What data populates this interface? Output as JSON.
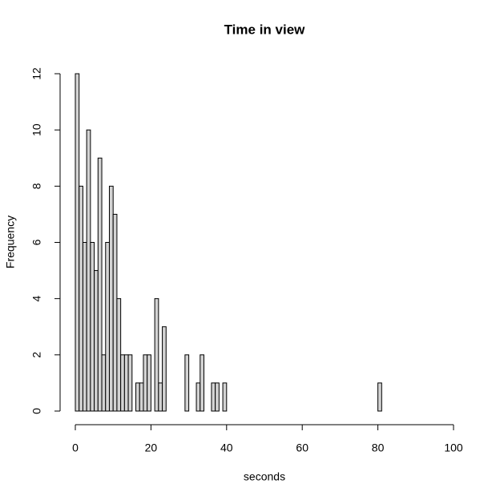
{
  "chart_data": {
    "type": "histogram",
    "title": "Time in view",
    "x_label": "seconds",
    "y_label": "Frequency",
    "bins": [
      0,
      1,
      2,
      3,
      4,
      5,
      6,
      7,
      8,
      9,
      10,
      11,
      12,
      13,
      14,
      15,
      16,
      17,
      18,
      19,
      20,
      21,
      22,
      23,
      24,
      25,
      26,
      27,
      28,
      29,
      30,
      31,
      32,
      33,
      34,
      35,
      36,
      37,
      38,
      39,
      40,
      41,
      42,
      43,
      44,
      45,
      46,
      47,
      48,
      49,
      50,
      51,
      52,
      53,
      54,
      55,
      56,
      57,
      58,
      59,
      60,
      61,
      62,
      63,
      64,
      65,
      66,
      67,
      68,
      69,
      70,
      71,
      72,
      73,
      74,
      75,
      76,
      77,
      78,
      79,
      80,
      81,
      82,
      83,
      84,
      85,
      86,
      87,
      88,
      89,
      90,
      91,
      92,
      93,
      94,
      95,
      96,
      97,
      98,
      99,
      100
    ],
    "counts": [
      12,
      8,
      6,
      10,
      6,
      5,
      9,
      2,
      6,
      8,
      7,
      4,
      2,
      2,
      2,
      0,
      1,
      1,
      2,
      2,
      0,
      4,
      1,
      3,
      0,
      0,
      0,
      0,
      0,
      2,
      0,
      0,
      1,
      2,
      0,
      0,
      1,
      1,
      0,
      1,
      0,
      0,
      0,
      0,
      0,
      0,
      0,
      0,
      0,
      0,
      0,
      0,
      0,
      0,
      0,
      0,
      0,
      0,
      0,
      0,
      0,
      0,
      0,
      0,
      0,
      0,
      0,
      0,
      0,
      0,
      0,
      0,
      0,
      0,
      0,
      0,
      0,
      0,
      0,
      0,
      1,
      0,
      0,
      0,
      0,
      0,
      0,
      0,
      0,
      0,
      0,
      0,
      0,
      0,
      0,
      0,
      0,
      0,
      0,
      0
    ],
    "color": "#d3d3d3",
    "xlim": [
      0,
      100
    ],
    "xticks": [
      0,
      20,
      40,
      60,
      80,
      100
    ],
    "ylim": [
      0,
      12
    ],
    "yticks": [
      0,
      2,
      4,
      6,
      8,
      10,
      12
    ]
  }
}
